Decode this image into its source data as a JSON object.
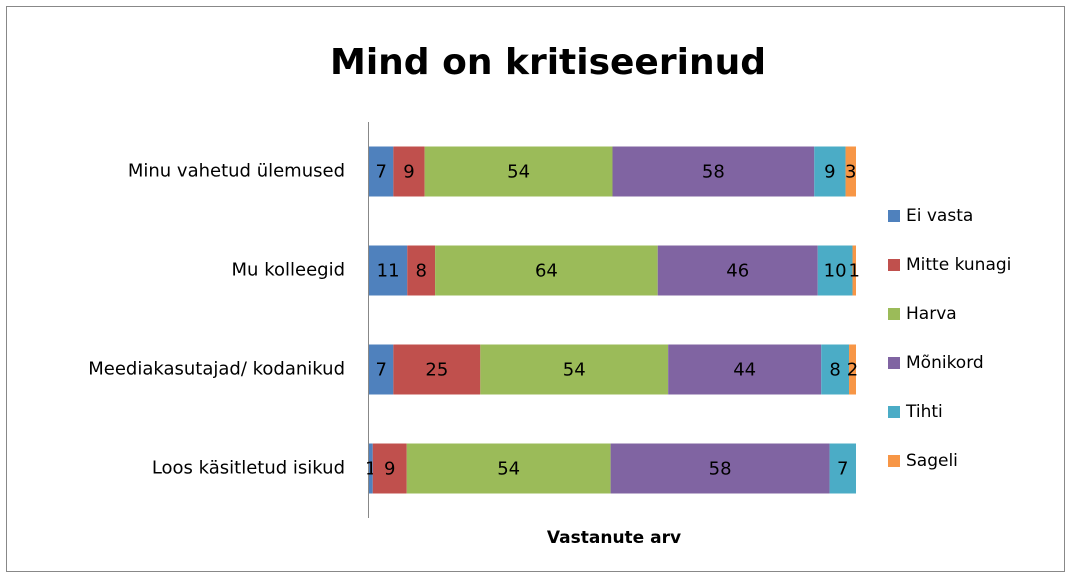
{
  "chart_data": {
    "type": "stacked-bar-100",
    "title": "Mind on kritiseerinud",
    "x_label": "Vastanute arv",
    "categories": [
      "Minu vahetud ülemused",
      "Mu kolleegid",
      "Meediakasutajad/ kodanikud",
      "Loos käsitletud isikud"
    ],
    "series": [
      {
        "name": "Ei vasta",
        "color": "#4f81bd",
        "values": [
          7,
          11,
          7,
          1
        ]
      },
      {
        "name": "Mitte kunagi",
        "color": "#c0504d",
        "values": [
          9,
          8,
          25,
          9
        ]
      },
      {
        "name": "Harva",
        "color": "#9bbb59",
        "values": [
          54,
          64,
          54,
          54
        ]
      },
      {
        "name": "Mõnikord",
        "color": "#8064a2",
        "values": [
          58,
          46,
          44,
          58
        ]
      },
      {
        "name": "Tihti",
        "color": "#4bacc6",
        "values": [
          9,
          10,
          8,
          7
        ]
      },
      {
        "name": "Sageli",
        "color": "#f79646",
        "values": [
          3,
          1,
          2,
          0
        ]
      }
    ],
    "legend": "right"
  }
}
